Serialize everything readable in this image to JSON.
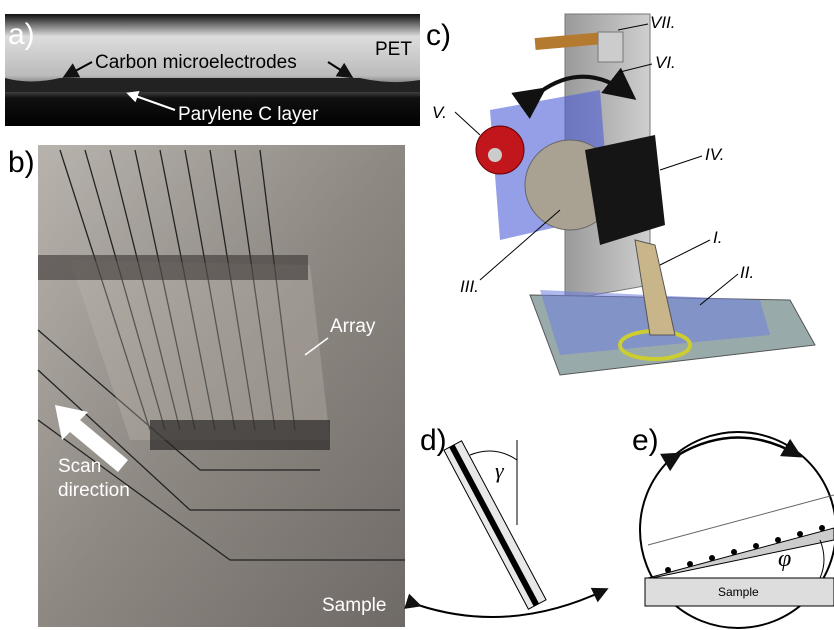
{
  "panel_a": {
    "label": "a)",
    "substrate": "PET",
    "electrodes": "Carbon microelectrodes",
    "layer": "Parylene C layer"
  },
  "panel_b": {
    "label": "b)",
    "array": "Array",
    "scan": [
      "Scan",
      "direction"
    ],
    "sample": "Sample"
  },
  "panel_c": {
    "label": "c)",
    "parts": [
      "I.",
      "II.",
      "III.",
      "IV.",
      "V.",
      "VI.",
      "VII."
    ]
  },
  "panel_d": {
    "label": "d)",
    "angle": "γ"
  },
  "panel_e": {
    "label": "e)",
    "angle": "φ",
    "sample": "Sample"
  }
}
